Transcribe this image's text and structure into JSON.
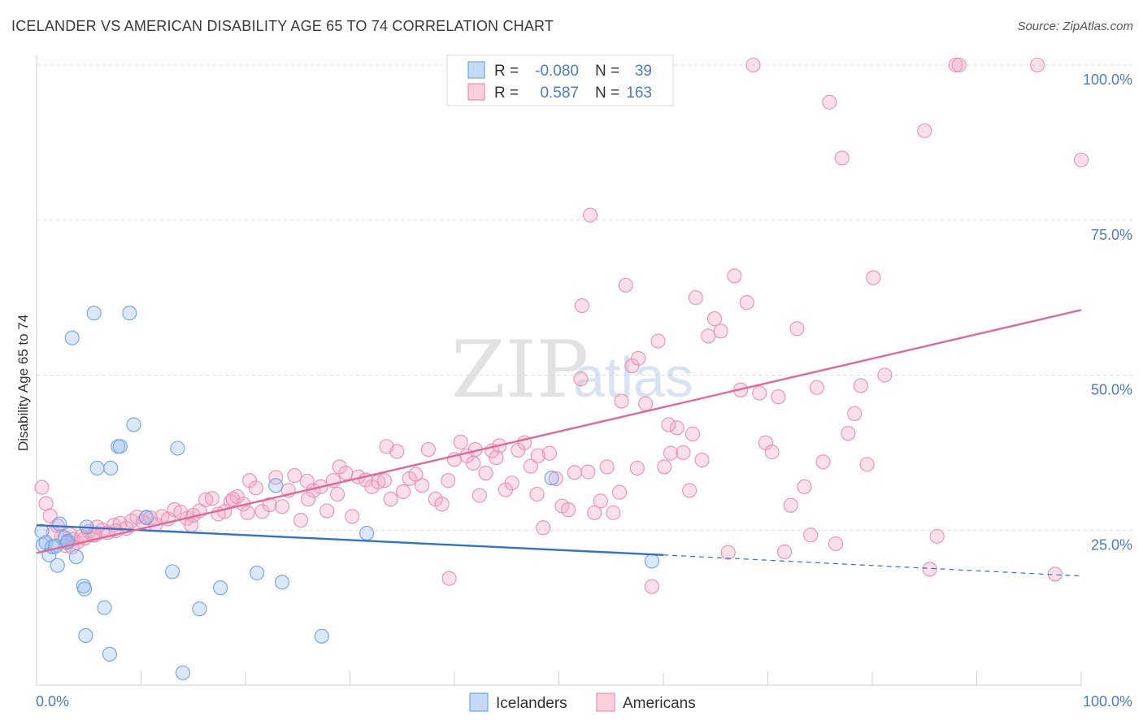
{
  "title": "ICELANDER VS AMERICAN DISABILITY AGE 65 TO 74 CORRELATION CHART",
  "source": "Source: ZipAtlas.com",
  "watermark": {
    "zip": "ZIP",
    "atlas": "atlas"
  },
  "legend": {
    "r_label": "R =",
    "n_label": "N =",
    "rows": [
      {
        "r": "-0.080",
        "n": "39"
      },
      {
        "r": "0.587",
        "n": "163"
      }
    ]
  },
  "chart_data": {
    "type": "scatter",
    "title": "ICELANDER VS AMERICAN DISABILITY AGE 65 TO 74 CORRELATION CHART",
    "ylabel": "Disability Age 65 to 74",
    "xlabel": "",
    "xlim": [
      0,
      100
    ],
    "ylim": [
      0,
      100
    ],
    "x_tick_labels": [
      "0.0%",
      "100.0%"
    ],
    "y_tick_labels": [
      "25.0%",
      "50.0%",
      "75.0%",
      "100.0%"
    ],
    "y_ticks": [
      25,
      50,
      75,
      100
    ],
    "colors": {
      "icelanders": "#6fa3e6",
      "americans": "#ef8fb0",
      "ice_line": "#2f72d0",
      "am_line": "#e0689a"
    },
    "series": [
      {
        "name": "Icelanders",
        "r": -0.08,
        "n": 39,
        "trend": {
          "x0": 0,
          "y0": 25.8,
          "x1": 60,
          "y1": 21.0,
          "dash_to": 100,
          "dash_y": 17.6
        },
        "points": [
          [
            0.5,
            24.8
          ],
          [
            0.6,
            22.6
          ],
          [
            0.9,
            23.0
          ],
          [
            1.2,
            21.0
          ],
          [
            1.5,
            22.3
          ],
          [
            1.8,
            22.4
          ],
          [
            2.0,
            19.3
          ],
          [
            2.2,
            26.0
          ],
          [
            2.7,
            23.8
          ],
          [
            3.0,
            23.2
          ],
          [
            3.4,
            56.0
          ],
          [
            3.8,
            20.7
          ],
          [
            4.5,
            16.0
          ],
          [
            4.6,
            15.5
          ],
          [
            4.7,
            8.0
          ],
          [
            4.8,
            25.5
          ],
          [
            5.5,
            60.0
          ],
          [
            5.8,
            35.0
          ],
          [
            6.5,
            12.5
          ],
          [
            7.0,
            5.0
          ],
          [
            7.1,
            35.0
          ],
          [
            7.8,
            38.5
          ],
          [
            8.0,
            38.5
          ],
          [
            8.9,
            60.0
          ],
          [
            9.3,
            42.0
          ],
          [
            10.5,
            27.0
          ],
          [
            13.0,
            18.3
          ],
          [
            13.5,
            38.2
          ],
          [
            14.0,
            2.0
          ],
          [
            15.6,
            12.3
          ],
          [
            17.6,
            15.7
          ],
          [
            21.1,
            18.1
          ],
          [
            22.9,
            32.2
          ],
          [
            23.5,
            16.6
          ],
          [
            27.3,
            7.9
          ],
          [
            31.6,
            24.5
          ],
          [
            49.3,
            33.4
          ],
          [
            58.9,
            20.0
          ],
          [
            2.9,
            23.0
          ]
        ]
      },
      {
        "name": "Americans",
        "r": 0.587,
        "n": 163,
        "trend": {
          "x0": 0,
          "y0": 21.3,
          "x1": 100,
          "y1": 60.5
        },
        "points": [
          [
            0.5,
            31.9
          ],
          [
            0.9,
            29.3
          ],
          [
            1.3,
            27.3
          ],
          [
            2.0,
            25.7
          ],
          [
            2.4,
            24.0
          ],
          [
            2.8,
            22.5
          ],
          [
            3.2,
            24.3
          ],
          [
            3.5,
            23.5
          ],
          [
            3.9,
            23.0
          ],
          [
            4.3,
            24.0
          ],
          [
            4.6,
            23.7
          ],
          [
            5.0,
            24.8
          ],
          [
            5.4,
            24.2
          ],
          [
            5.8,
            25.5
          ],
          [
            6.3,
            25.0
          ],
          [
            6.8,
            24.6
          ],
          [
            7.4,
            25.8
          ],
          [
            8.0,
            26.1
          ],
          [
            8.6,
            25.3
          ],
          [
            9.1,
            26.5
          ],
          [
            9.6,
            27.1
          ],
          [
            10.2,
            26.3
          ],
          [
            10.9,
            27.0
          ],
          [
            11.4,
            25.9
          ],
          [
            12.0,
            27.2
          ],
          [
            12.6,
            26.8
          ],
          [
            13.2,
            28.3
          ],
          [
            13.8,
            27.9
          ],
          [
            14.4,
            26.9
          ],
          [
            15.0,
            27.4
          ],
          [
            15.6,
            28.1
          ],
          [
            16.2,
            29.9
          ],
          [
            16.8,
            30.1
          ],
          [
            17.4,
            27.6
          ],
          [
            18.0,
            28.0
          ],
          [
            18.6,
            29.6
          ],
          [
            19.2,
            30.4
          ],
          [
            19.8,
            29.2
          ],
          [
            20.4,
            33.0
          ],
          [
            21.0,
            31.8
          ],
          [
            21.6,
            28.0
          ],
          [
            22.3,
            29.1
          ],
          [
            22.9,
            33.5
          ],
          [
            23.5,
            28.8
          ],
          [
            24.1,
            31.4
          ],
          [
            24.7,
            33.8
          ],
          [
            25.3,
            26.6
          ],
          [
            25.9,
            32.9
          ],
          [
            26.5,
            31.4
          ],
          [
            27.2,
            32.0
          ],
          [
            27.8,
            28.1
          ],
          [
            28.4,
            33.0
          ],
          [
            29.0,
            35.2
          ],
          [
            29.6,
            34.2
          ],
          [
            30.2,
            27.2
          ],
          [
            30.8,
            33.6
          ],
          [
            31.5,
            33.1
          ],
          [
            32.1,
            32.0
          ],
          [
            32.7,
            32.8
          ],
          [
            33.3,
            33.0
          ],
          [
            33.9,
            30.0
          ],
          [
            34.5,
            37.7
          ],
          [
            35.1,
            31.2
          ],
          [
            35.7,
            33.3
          ],
          [
            36.3,
            34.0
          ],
          [
            36.9,
            32.2
          ],
          [
            37.5,
            38.0
          ],
          [
            38.2,
            30.0
          ],
          [
            38.8,
            29.2
          ],
          [
            39.4,
            33.0
          ],
          [
            40.0,
            36.4
          ],
          [
            40.6,
            39.2
          ],
          [
            41.2,
            37.0
          ],
          [
            41.8,
            35.8
          ],
          [
            42.4,
            30.6
          ],
          [
            43.0,
            34.2
          ],
          [
            43.6,
            37.8
          ],
          [
            44.3,
            38.6
          ],
          [
            44.9,
            31.5
          ],
          [
            45.5,
            32.6
          ],
          [
            46.1,
            37.9
          ],
          [
            46.7,
            39.1
          ],
          [
            47.3,
            35.3
          ],
          [
            47.9,
            30.8
          ],
          [
            48.5,
            25.4
          ],
          [
            49.1,
            37.4
          ],
          [
            49.7,
            33.3
          ],
          [
            50.3,
            28.9
          ],
          [
            50.9,
            28.3
          ],
          [
            51.5,
            34.3
          ],
          [
            52.1,
            49.4
          ],
          [
            52.8,
            34.4
          ],
          [
            53.4,
            27.8
          ],
          [
            54.0,
            29.7
          ],
          [
            54.6,
            35.2
          ],
          [
            55.2,
            27.8
          ],
          [
            55.8,
            31.1
          ],
          [
            56.4,
            64.5
          ],
          [
            57.0,
            51.5
          ],
          [
            57.6,
            52.7
          ],
          [
            58.3,
            45.4
          ],
          [
            58.9,
            15.9
          ],
          [
            59.5,
            55.5
          ],
          [
            60.1,
            35.2
          ],
          [
            60.7,
            37.4
          ],
          [
            61.3,
            41.5
          ],
          [
            61.9,
            37.5
          ],
          [
            62.5,
            31.4
          ],
          [
            63.1,
            62.5
          ],
          [
            63.7,
            36.3
          ],
          [
            64.3,
            56.3
          ],
          [
            64.9,
            59.1
          ],
          [
            65.5,
            57.1
          ],
          [
            66.2,
            21.4
          ],
          [
            66.8,
            66.0
          ],
          [
            67.4,
            47.6
          ],
          [
            68.0,
            61.7
          ],
          [
            68.6,
            100.0
          ],
          [
            69.2,
            47.1
          ],
          [
            69.8,
            39.1
          ],
          [
            70.4,
            37.6
          ],
          [
            71.0,
            46.5
          ],
          [
            71.6,
            21.5
          ],
          [
            72.2,
            29.0
          ],
          [
            72.8,
            57.5
          ],
          [
            73.5,
            32.0
          ],
          [
            74.1,
            24.2
          ],
          [
            74.7,
            48.0
          ],
          [
            75.3,
            36.0
          ],
          [
            75.9,
            94.0
          ],
          [
            76.5,
            22.8
          ],
          [
            77.1,
            85.0
          ],
          [
            77.7,
            40.6
          ],
          [
            78.3,
            43.8
          ],
          [
            78.9,
            48.3
          ],
          [
            79.5,
            35.6
          ],
          [
            80.1,
            65.7
          ],
          [
            81.2,
            50.0
          ],
          [
            85.0,
            89.4
          ],
          [
            85.5,
            18.7
          ],
          [
            86.2,
            24.0
          ],
          [
            88.0,
            100.0
          ],
          [
            88.3,
            100.0
          ],
          [
            95.8,
            100.0
          ],
          [
            97.5,
            17.9
          ],
          [
            100.0,
            84.7
          ],
          [
            39.5,
            17.2
          ],
          [
            42.0,
            38.0
          ],
          [
            48.0,
            37.0
          ],
          [
            52.2,
            61.2
          ],
          [
            53.0,
            75.8
          ],
          [
            56.0,
            45.8
          ],
          [
            57.5,
            35.0
          ],
          [
            60.5,
            42.0
          ],
          [
            62.8,
            40.5
          ],
          [
            33.5,
            38.5
          ],
          [
            28.8,
            30.8
          ],
          [
            26.0,
            30.0
          ],
          [
            20.2,
            27.8
          ],
          [
            18.8,
            30.0
          ],
          [
            14.8,
            25.8
          ],
          [
            10.5,
            27.1
          ],
          [
            7.6,
            24.9
          ],
          [
            5.6,
            24.2
          ],
          [
            3.4,
            22.3
          ],
          [
            1.6,
            24.5
          ],
          [
            44.0,
            36.7
          ]
        ]
      }
    ]
  }
}
